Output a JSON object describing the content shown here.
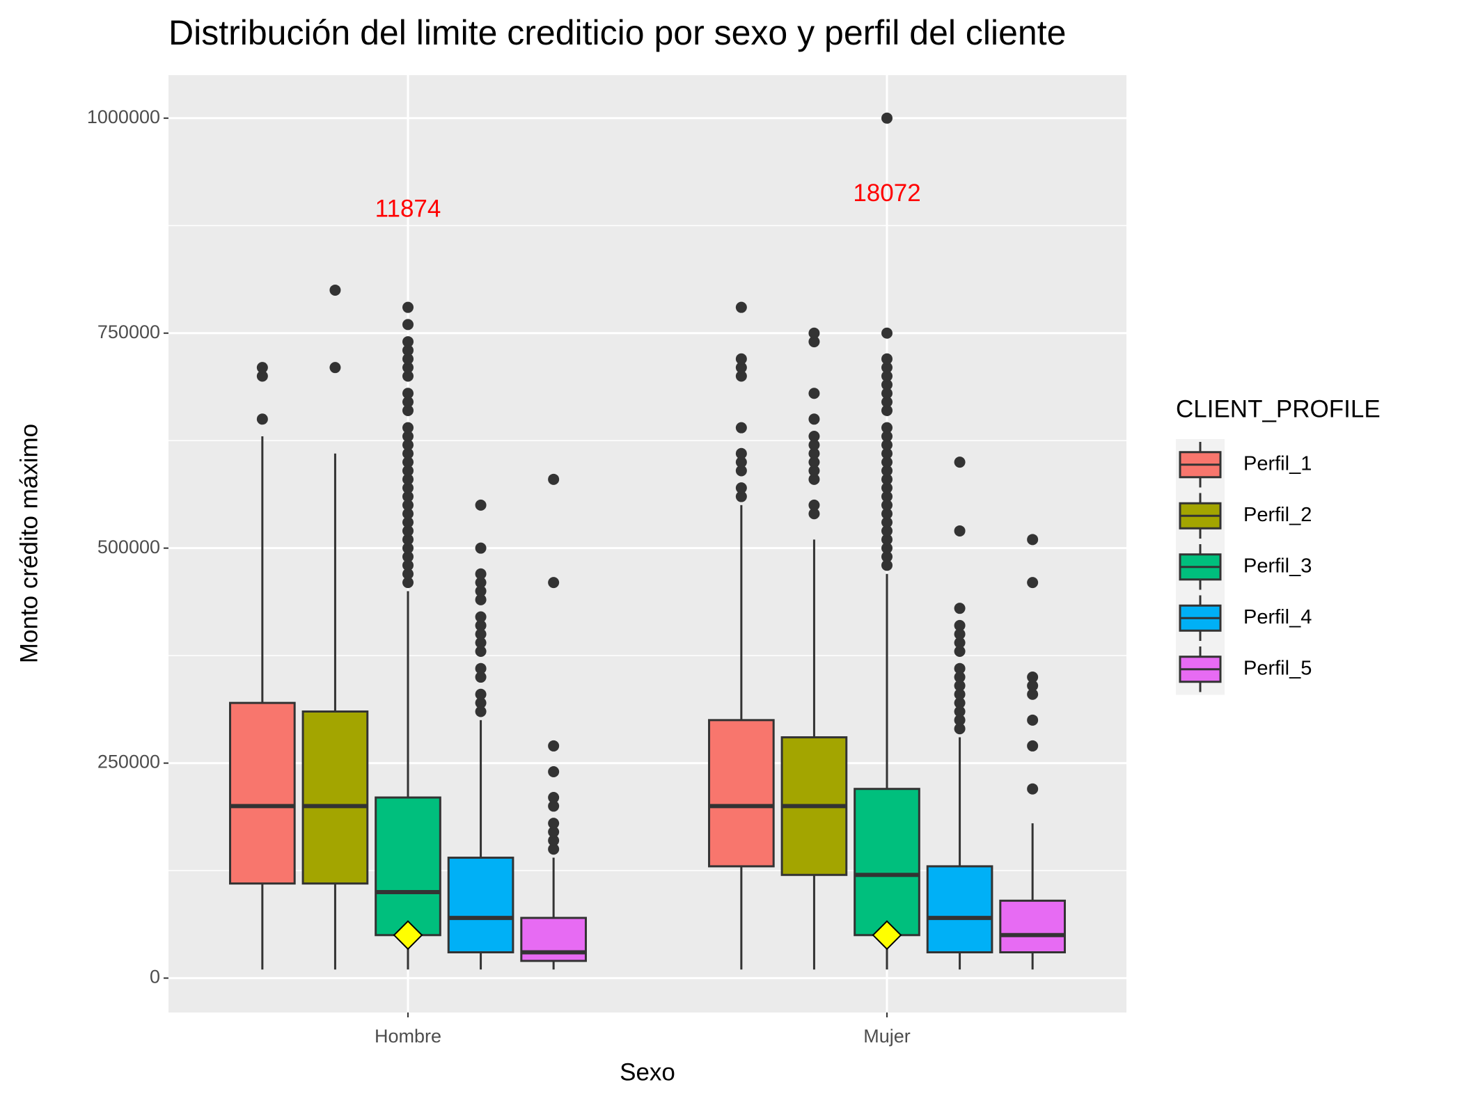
{
  "chart_data": {
    "type": "box",
    "title": "Distribución del limite crediticio por sexo y perfil del cliente",
    "x_label": "Sexo",
    "y_label": "Monto crédito máximo",
    "legend_title": "CLIENT_PROFILE",
    "legend_position": "right",
    "categories": [
      "Hombre",
      "Mujer"
    ],
    "ylim": [
      -40000,
      1050000
    ],
    "yticks": [
      0,
      250000,
      500000,
      750000,
      1000000
    ],
    "grid": true,
    "minor_grid": true,
    "mean_color": "#ffff00",
    "annotations": [
      "11874",
      "18072"
    ],
    "annotation_y": [
      893000,
      911000
    ],
    "annotation_color": "#ff0000",
    "series": [
      {
        "name": "Perfil_1",
        "color": "#f8766d",
        "boxes": [
          {
            "lower": 10000,
            "q1": 110000,
            "median": 200000,
            "q3": 320000,
            "upper": 630000,
            "outliers": [
              650000,
              700000,
              710000
            ]
          },
          {
            "lower": 10000,
            "q1": 130000,
            "median": 200000,
            "q3": 300000,
            "upper": 550000,
            "outliers": [
              560000,
              570000,
              590000,
              600000,
              610000,
              640000,
              700000,
              710000,
              720000,
              780000
            ]
          }
        ]
      },
      {
        "name": "Perfil_2",
        "color": "#a3a500",
        "boxes": [
          {
            "lower": 10000,
            "q1": 110000,
            "median": 200000,
            "q3": 310000,
            "upper": 610000,
            "outliers": [
              710000,
              800000
            ]
          },
          {
            "lower": 10000,
            "q1": 120000,
            "median": 200000,
            "q3": 280000,
            "upper": 510000,
            "outliers": [
              540000,
              550000,
              580000,
              590000,
              600000,
              610000,
              620000,
              630000,
              650000,
              680000,
              740000,
              750000
            ]
          }
        ]
      },
      {
        "name": "Perfil_3",
        "color": "#00bf7d",
        "boxes": [
          {
            "lower": 10000,
            "q1": 50000,
            "median": 100000,
            "q3": 210000,
            "upper": 450000,
            "mean": 50000,
            "outliers": [
              460000,
              470000,
              480000,
              490000,
              500000,
              510000,
              520000,
              530000,
              540000,
              550000,
              560000,
              570000,
              580000,
              590000,
              600000,
              610000,
              620000,
              630000,
              640000,
              660000,
              670000,
              680000,
              700000,
              710000,
              720000,
              730000,
              740000,
              760000,
              780000
            ]
          },
          {
            "lower": 10000,
            "q1": 50000,
            "median": 120000,
            "q3": 220000,
            "upper": 470000,
            "mean": 50000,
            "outliers": [
              480000,
              490000,
              500000,
              510000,
              520000,
              530000,
              540000,
              550000,
              560000,
              570000,
              580000,
              590000,
              600000,
              610000,
              620000,
              630000,
              640000,
              660000,
              670000,
              680000,
              690000,
              700000,
              710000,
              720000,
              750000,
              1000000
            ]
          }
        ]
      },
      {
        "name": "Perfil_4",
        "color": "#00b0f6",
        "boxes": [
          {
            "lower": 10000,
            "q1": 30000,
            "median": 70000,
            "q3": 140000,
            "upper": 300000,
            "outliers": [
              310000,
              320000,
              330000,
              350000,
              360000,
              380000,
              390000,
              400000,
              410000,
              420000,
              440000,
              450000,
              460000,
              470000,
              500000,
              550000
            ]
          },
          {
            "lower": 10000,
            "q1": 30000,
            "median": 70000,
            "q3": 130000,
            "upper": 280000,
            "outliers": [
              290000,
              300000,
              310000,
              320000,
              330000,
              340000,
              350000,
              360000,
              380000,
              390000,
              400000,
              410000,
              430000,
              520000,
              600000
            ]
          }
        ]
      },
      {
        "name": "Perfil_5",
        "color": "#e76bf3",
        "boxes": [
          {
            "lower": 10000,
            "q1": 20000,
            "median": 30000,
            "q3": 70000,
            "upper": 140000,
            "outliers": [
              150000,
              160000,
              170000,
              180000,
              200000,
              210000,
              240000,
              270000,
              460000,
              580000
            ]
          },
          {
            "lower": 10000,
            "q1": 30000,
            "median": 50000,
            "q3": 90000,
            "upper": 180000,
            "outliers": [
              220000,
              270000,
              300000,
              330000,
              340000,
              350000,
              460000,
              510000
            ]
          }
        ]
      }
    ]
  }
}
